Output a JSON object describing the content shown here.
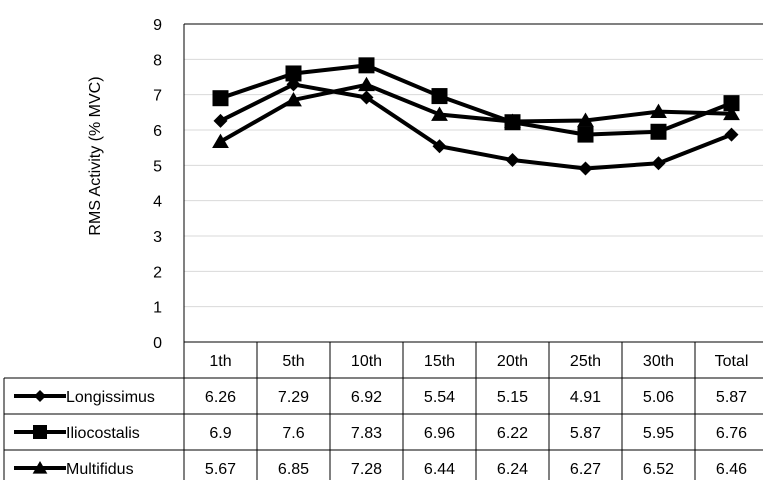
{
  "chart_data": {
    "type": "line",
    "ylabel": "RMS Activity (% MVC)",
    "ylim": [
      0,
      9
    ],
    "yticks": [
      "0",
      "1",
      "2",
      "3",
      "4",
      "5",
      "6",
      "7",
      "8",
      "9"
    ],
    "grid": true,
    "categories": [
      "1th",
      "5th",
      "10th",
      "15th",
      "20th",
      "25th",
      "30th",
      "Total"
    ],
    "series": [
      {
        "name": "Longissimus",
        "marker": "diamond",
        "values": [
          6.26,
          7.29,
          6.92,
          5.54,
          5.15,
          4.91,
          5.06,
          5.87
        ],
        "labels": [
          "6.26",
          "7.29",
          "6.92",
          "5.54",
          "5.15",
          "4.91",
          "5.06",
          "5.87"
        ]
      },
      {
        "name": "Iliocostalis",
        "marker": "square",
        "values": [
          6.9,
          7.6,
          7.83,
          6.96,
          6.22,
          5.87,
          5.95,
          6.76
        ],
        "labels": [
          "6.9",
          "7.6",
          "7.83",
          "6.96",
          "6.22",
          "5.87",
          "5.95",
          "6.76"
        ]
      },
      {
        "name": "Multifidus",
        "marker": "triangle",
        "values": [
          5.67,
          6.85,
          7.28,
          6.44,
          6.24,
          6.27,
          6.52,
          6.46
        ],
        "labels": [
          "5.67",
          "6.85",
          "7.28",
          "6.44",
          "6.24",
          "6.27",
          "6.52",
          "6.46"
        ]
      }
    ],
    "colors": {
      "line": "#000000",
      "grid": "#d9d9d9",
      "border": "#000000"
    }
  }
}
